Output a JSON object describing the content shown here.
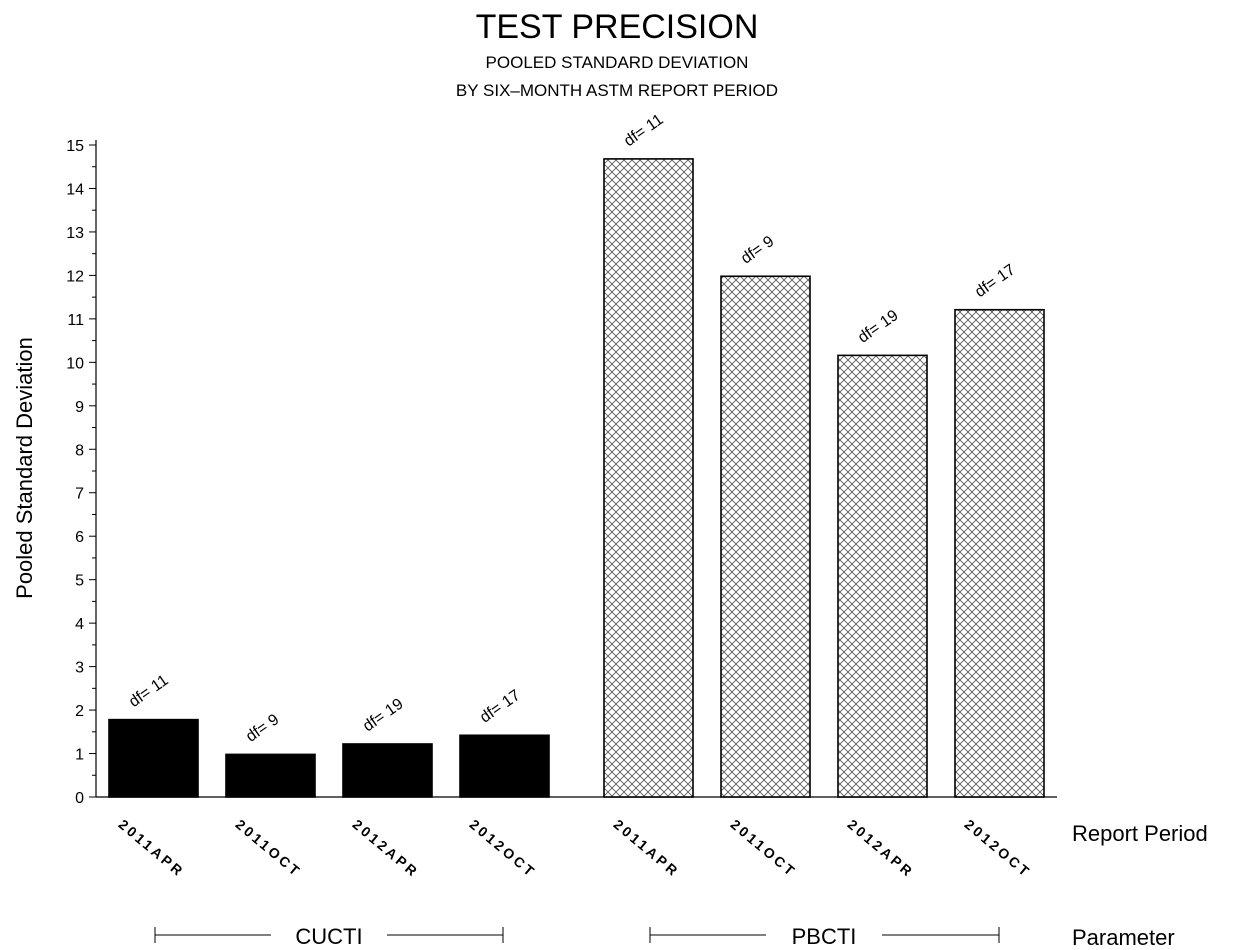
{
  "chart_data": {
    "type": "bar",
    "title": "TEST PRECISION",
    "subtitle_lines": [
      "POOLED STANDARD DEVIATION",
      "BY SIX–MONTH ASTM REPORT PERIOD"
    ],
    "ylabel": "Pooled Standard Deviation",
    "xlabel": "Report Period",
    "group_label": "Parameter",
    "ylim": [
      0,
      15
    ],
    "yticks": [
      0,
      1,
      2,
      3,
      4,
      5,
      6,
      7,
      8,
      9,
      10,
      11,
      12,
      13,
      14,
      15
    ],
    "groups": [
      {
        "name": "CUCTI",
        "fill": "solid",
        "color": "#000000",
        "categories": [
          "2011APR",
          "2011OCT",
          "2012APR",
          "2012OCT"
        ],
        "values": [
          1.78,
          0.98,
          1.22,
          1.42
        ],
        "df_labels": [
          "df=  11",
          "df=   9",
          "df=  19",
          "df=  17"
        ]
      },
      {
        "name": "PBCTI",
        "fill": "crosshatch",
        "color": "#000000",
        "categories": [
          "2011APR",
          "2011OCT",
          "2012APR",
          "2012OCT"
        ],
        "values": [
          14.68,
          11.98,
          10.16,
          11.21
        ],
        "df_labels": [
          "df=  11",
          "df=   9",
          "df=  19",
          "df=  17"
        ]
      }
    ]
  }
}
